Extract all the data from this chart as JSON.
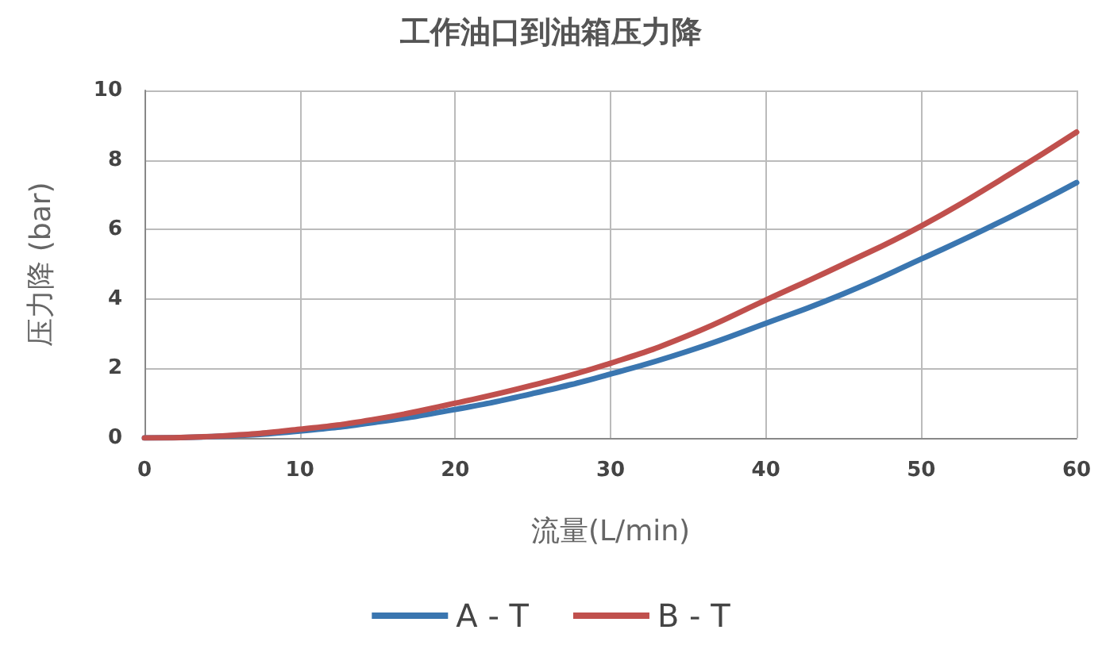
{
  "chart_data": {
    "type": "line",
    "title": "工作油口到油箱压力降",
    "xlabel": "流量(L/min)",
    "ylabel": "压力降 (bar)",
    "x": [
      0,
      5,
      10,
      15,
      20,
      25,
      30,
      35,
      40,
      45,
      50,
      55,
      60
    ],
    "series": [
      {
        "name": "A - T",
        "color": "#3a76b0",
        "values": [
          0,
          0.05,
          0.2,
          0.46,
          0.82,
          1.28,
          1.84,
          2.5,
          3.3,
          4.15,
          5.15,
          6.2,
          7.35
        ]
      },
      {
        "name": "B - T",
        "color": "#c0504d",
        "values": [
          0,
          0.06,
          0.25,
          0.55,
          1.0,
          1.52,
          2.15,
          2.95,
          3.97,
          5.0,
          6.1,
          7.4,
          8.8
        ]
      }
    ],
    "xlim": [
      0,
      60
    ],
    "xticks": [
      0,
      10,
      20,
      30,
      40,
      50,
      60
    ],
    "ylim": [
      0,
      10
    ],
    "yticks": [
      0,
      2,
      4,
      6,
      8,
      10
    ],
    "grid": true,
    "legend": "bottom",
    "marker": "none",
    "line_style": "solid"
  }
}
